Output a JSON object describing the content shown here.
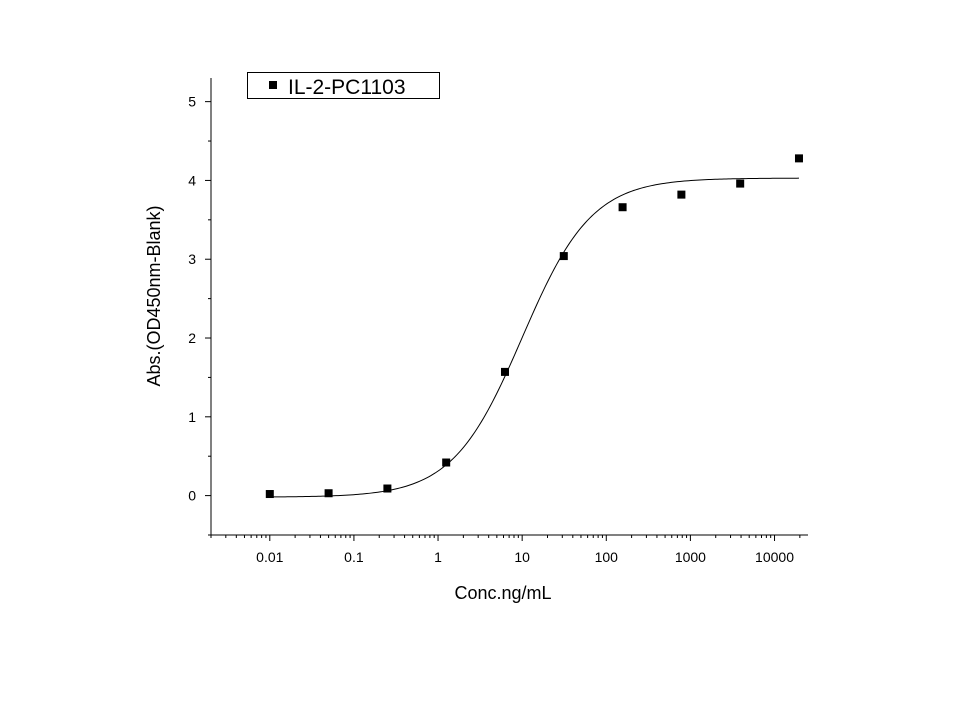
{
  "chart_data": {
    "type": "scatter",
    "xscale": "log",
    "xlabel": "Conc.ng/mL",
    "ylabel": "Abs.(OD450nm-Blank)",
    "xlim": [
      0.002,
      25000
    ],
    "ylim": [
      -0.5,
      5.3
    ],
    "xticks": [
      {
        "value": 0.01,
        "label": "0.01"
      },
      {
        "value": 0.1,
        "label": "0.1"
      },
      {
        "value": 1,
        "label": "1"
      },
      {
        "value": 10,
        "label": "10"
      },
      {
        "value": 100,
        "label": "100"
      },
      {
        "value": 1000,
        "label": "1000"
      },
      {
        "value": 10000,
        "label": "10000"
      }
    ],
    "yticks": [
      {
        "value": 0,
        "label": "0"
      },
      {
        "value": 1,
        "label": "1"
      },
      {
        "value": 2,
        "label": "2"
      },
      {
        "value": 3,
        "label": "3"
      },
      {
        "value": 4,
        "label": "4"
      },
      {
        "value": 5,
        "label": "5"
      }
    ],
    "grid": false,
    "legend_position": "top-left",
    "series": [
      {
        "name": "IL-2-PC1103",
        "marker": "square",
        "color": "#000000",
        "x": [
          0.01,
          0.05,
          0.25,
          1.25,
          6.25,
          31.25,
          156.25,
          781.25,
          3906.25,
          19531.25
        ],
        "y": [
          0.02,
          0.03,
          0.09,
          0.42,
          1.57,
          3.04,
          3.66,
          3.82,
          3.96,
          4.28
        ]
      }
    ],
    "fit": {
      "model": "4PL",
      "bottom": -0.02,
      "top": 4.03,
      "ec50": 10,
      "hill": 1.05,
      "x_range": [
        0.01,
        19531.25
      ],
      "color": "#000000"
    }
  }
}
